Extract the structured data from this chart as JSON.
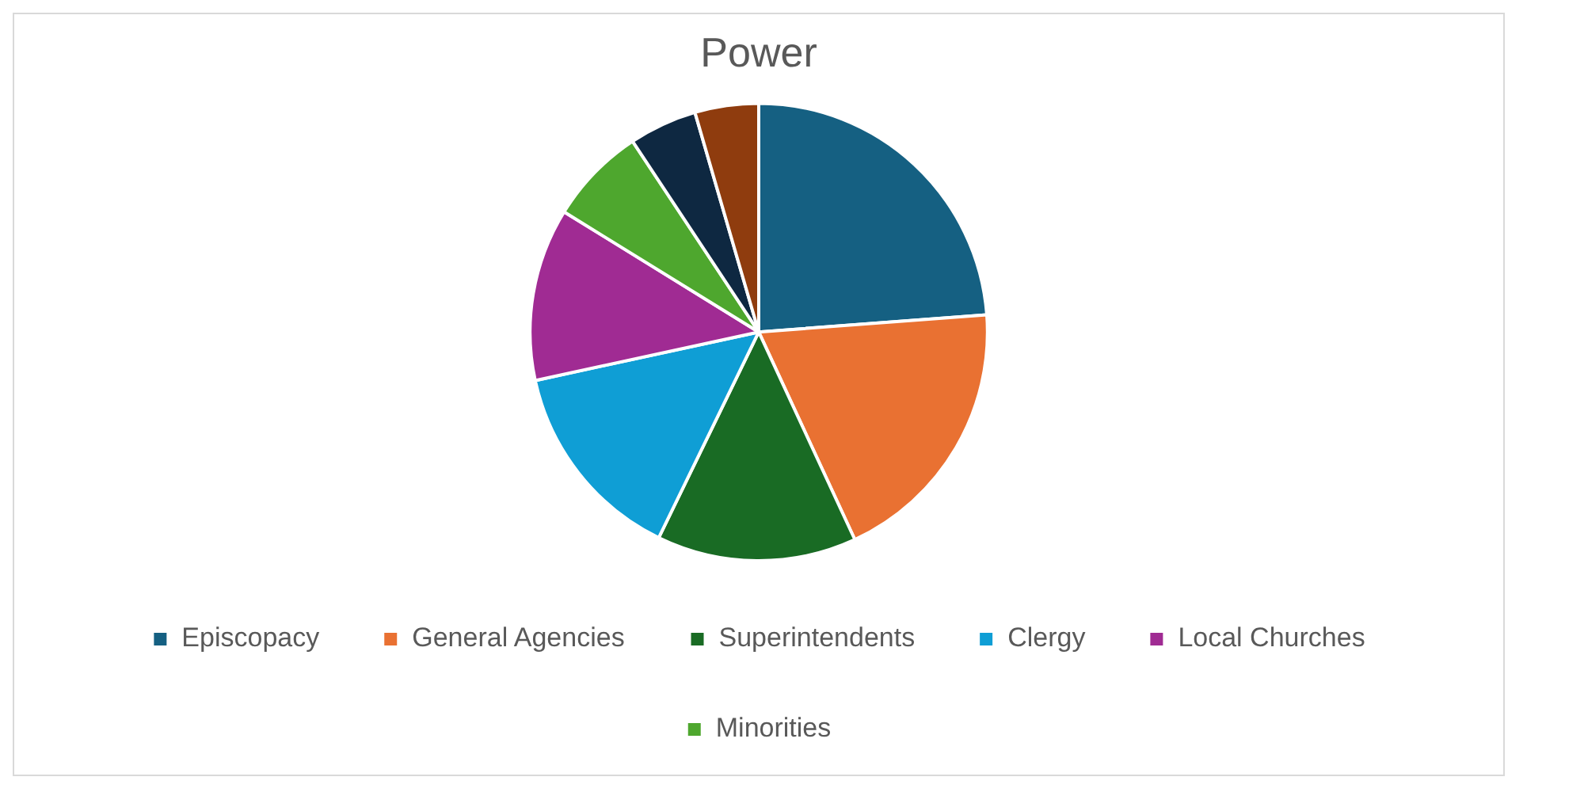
{
  "chart_data": {
    "type": "pie",
    "title": "Power",
    "categories": [
      "Episcopacy",
      "General Agencies",
      "Superintendents",
      "Clergy",
      "Local Churches",
      "Minorities",
      null,
      null
    ],
    "values": [
      23.8,
      19.3,
      14.1,
      14.4,
      12.2,
      6.9,
      4.8,
      4.5
    ],
    "colors": [
      "#156082",
      "#e97132",
      "#196b24",
      "#0f9ed5",
      "#a02b93",
      "#4ea72e",
      "#0e2841",
      "#8f3c0e"
    ],
    "legend": "bottom"
  }
}
